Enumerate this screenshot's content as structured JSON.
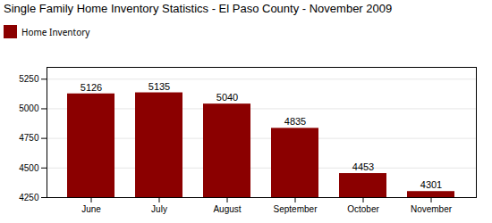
{
  "chart_data": {
    "type": "bar",
    "title": "Single Family Home Inventory Statistics - El Paso County - November 2009",
    "categories": [
      "June",
      "July",
      "August",
      "September",
      "October",
      "November"
    ],
    "series": [
      {
        "name": "Home Inventory",
        "color": "#8B0000",
        "values": [
          5126,
          5135,
          5040,
          4835,
          4453,
          4301
        ]
      }
    ],
    "ylim": [
      4250,
      5350
    ],
    "yticks": [
      4250,
      4500,
      4750,
      5000,
      5250
    ],
    "grid": true,
    "data_labels": true,
    "legend": "upper left"
  }
}
